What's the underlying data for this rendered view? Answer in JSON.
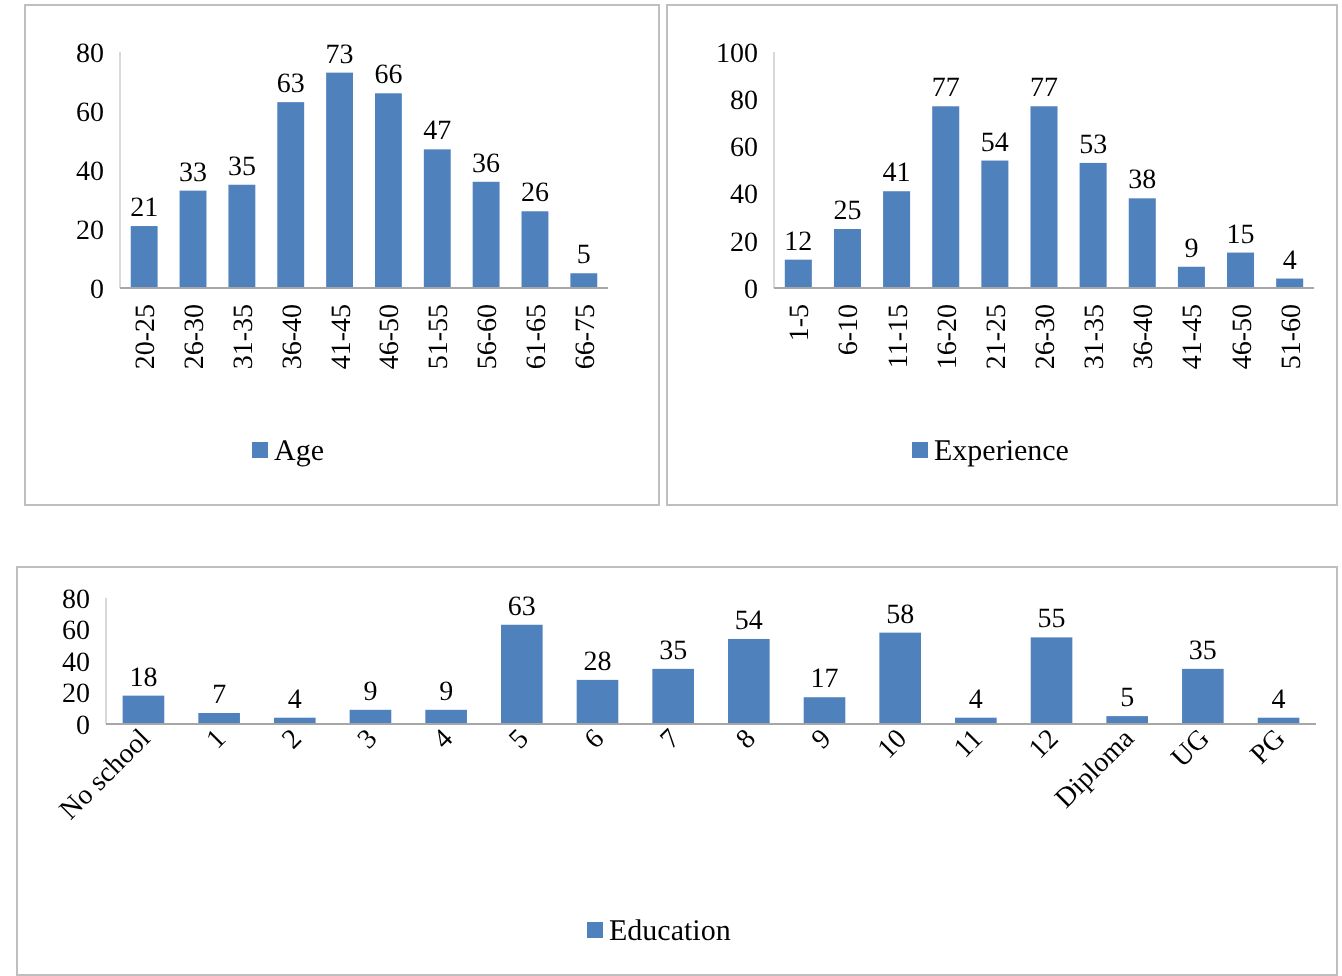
{
  "chart_data": [
    {
      "type": "bar",
      "categories": [
        "20-25",
        "26-30",
        "31-35",
        "36-40",
        "41-45",
        "46-50",
        "51-55",
        "56-60",
        "61-65",
        "66-75"
      ],
      "series": [
        {
          "name": "Age",
          "color": "#4f81bd",
          "values": [
            21,
            33,
            35,
            63,
            73,
            66,
            47,
            36,
            26,
            5
          ]
        }
      ],
      "ylim": [
        0,
        80
      ],
      "yticks": [
        0,
        20,
        40,
        60,
        80
      ],
      "data_labels": true,
      "legend": "bottom"
    },
    {
      "type": "bar",
      "categories": [
        "1-5",
        "6-10",
        "11-15",
        "16-20",
        "21-25",
        "26-30",
        "31-35",
        "36-40",
        "41-45",
        "46-50",
        "51-60"
      ],
      "series": [
        {
          "name": "Experience",
          "color": "#4f81bd",
          "values": [
            12,
            25,
            41,
            77,
            54,
            77,
            53,
            38,
            9,
            15,
            4
          ]
        }
      ],
      "ylim": [
        0,
        100
      ],
      "yticks": [
        0,
        20,
        40,
        60,
        80,
        100
      ],
      "data_labels": true,
      "legend": "bottom"
    },
    {
      "type": "bar",
      "categories": [
        "No school",
        "1",
        "2",
        "3",
        "4",
        "5",
        "6",
        "7",
        "8",
        "9",
        "10",
        "11",
        "12",
        "Diploma",
        "UG",
        "PG"
      ],
      "series": [
        {
          "name": "Education",
          "color": "#4f81bd",
          "values": [
            18,
            7,
            4,
            9,
            9,
            63,
            28,
            35,
            54,
            17,
            58,
            4,
            55,
            5,
            35,
            4
          ]
        }
      ],
      "ylim": [
        0,
        80
      ],
      "yticks": [
        0,
        20,
        40,
        60,
        80
      ],
      "data_labels": true,
      "legend": "bottom"
    }
  ]
}
